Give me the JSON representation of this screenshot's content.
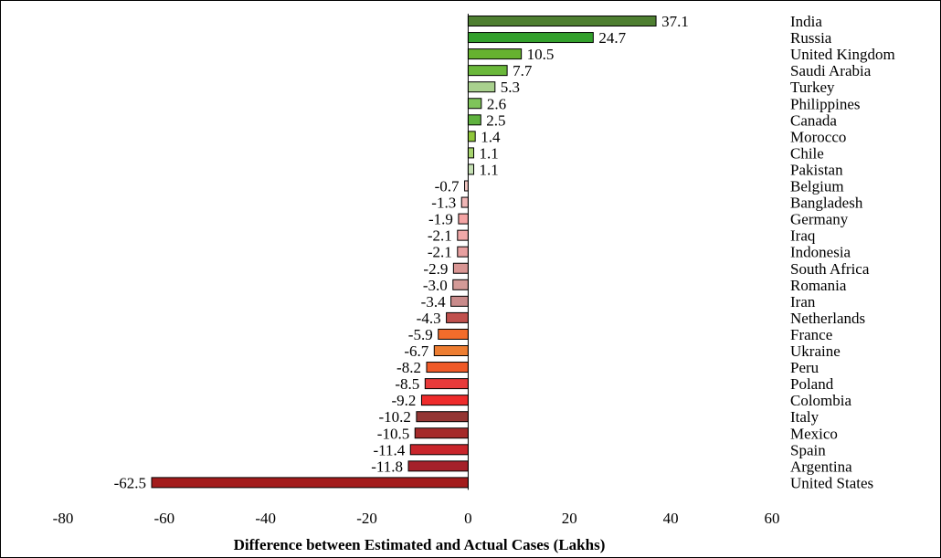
{
  "chart_data": {
    "type": "bar",
    "orientation": "horizontal",
    "title": "",
    "xlabel": "Difference between Estimated and Actual Cases (Lakhs)",
    "ylabel": "",
    "xlim": [
      -80,
      60
    ],
    "xticks": [
      "-80",
      "-60",
      "-40",
      "-20",
      "0",
      "20",
      "40",
      "60"
    ],
    "grid": false,
    "legend": "none",
    "categories": [
      "India",
      "Russia",
      "United Kingdom",
      "Saudi Arabia",
      "Turkey",
      "Philippines",
      "Canada",
      "Morocco",
      "Chile",
      "Pakistan",
      "Belgium",
      "Bangladesh",
      "Germany",
      "Iraq",
      "Indonesia",
      "South Africa",
      "Romania",
      "Iran",
      "Netherlands",
      "France",
      "Ukraine",
      "Peru",
      "Poland",
      "Colombia",
      "Italy",
      "Mexico",
      "Spain",
      "Argentina",
      "United States"
    ],
    "values": [
      37.1,
      24.7,
      10.5,
      7.7,
      5.3,
      2.6,
      2.5,
      1.4,
      1.1,
      1.1,
      -0.7,
      -1.3,
      -1.9,
      -2.1,
      -2.1,
      -2.9,
      -3.0,
      -3.4,
      -4.3,
      -5.9,
      -6.7,
      -8.2,
      -8.5,
      -9.2,
      -10.2,
      -10.5,
      -11.4,
      -11.8,
      -62.5
    ],
    "value_labels": [
      "37.1",
      "24.7",
      "10.5",
      "7.7",
      "5.3",
      "2.6",
      "2.5",
      "1.4",
      "1.1",
      "1.1",
      "-0.7",
      "-1.3",
      "-1.9",
      "-2.1",
      "-2.1",
      "-2.9",
      "-3.0",
      "-3.4",
      "-4.3",
      "-5.9",
      "-6.7",
      "-8.2",
      "-8.5",
      "-9.2",
      "-10.2",
      "-10.5",
      "-11.4",
      "-11.8",
      "-62.5"
    ],
    "colors": [
      "#4e7f31",
      "#33a02c",
      "#66b22f",
      "#6ab83a",
      "#a9d18e",
      "#7fc45a",
      "#5fb23e",
      "#8fc63a",
      "#a6d46e",
      "#c5e0b4",
      "#f4c7c3",
      "#f0b6b6",
      "#f4a4a4",
      "#f0a8a8",
      "#e8a0a0",
      "#d99694",
      "#d49a97",
      "#c98b8b",
      "#c0504d",
      "#f26c2b",
      "#ed7d31",
      "#f05a28",
      "#e83a3a",
      "#ee2b2b",
      "#943634",
      "#a52a2a",
      "#c9252b",
      "#a5212a",
      "#a31b1b"
    ]
  }
}
